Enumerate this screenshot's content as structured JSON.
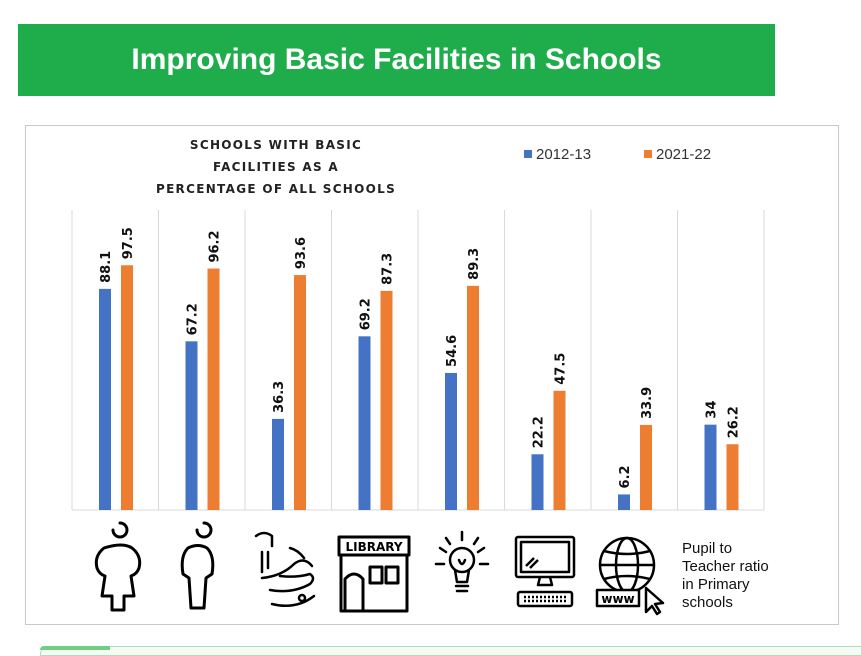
{
  "banner": {
    "title": "Improving Basic Facilities in Schools"
  },
  "colors": {
    "banner": "#1fad4b",
    "series_2012": "#4472c4",
    "series_2021": "#ed7d31"
  },
  "chart_data": {
    "type": "bar",
    "title": "SCHOOLS WITH BASIC FACILITIES AS A PERCENTAGE OF ALL SCHOOLS",
    "title_lines": [
      "SCHOOLS WITH BASIC FACILITIES AS A",
      "PERCENTAGE OF ALL SCHOOLS"
    ],
    "categories": [
      "girls-toilet",
      "boys-toilet",
      "handwash",
      "library",
      "electricity",
      "computer",
      "internet",
      "pupil-teacher-ratio"
    ],
    "series": [
      {
        "name": "2012-13",
        "values": [
          88.1,
          67.2,
          36.3,
          69.2,
          54.6,
          22.2,
          6.2,
          34
        ]
      },
      {
        "name": "2021-22",
        "values": [
          97.5,
          96.2,
          93.6,
          87.3,
          89.3,
          47.5,
          33.9,
          26.2
        ]
      }
    ],
    "value_labels": [
      [
        "88.1",
        "67.2",
        "36.3",
        "69.2",
        "54.6",
        "22.2",
        "6.2",
        "34"
      ],
      [
        "97.5",
        "96.2",
        "93.6",
        "87.3",
        "89.3",
        "47.5",
        "33.9",
        "26.2"
      ]
    ],
    "ylim": [
      0,
      105
    ],
    "legend": "top-right",
    "grid": "vertical",
    "icon_labels": {
      "library": "LIBRARY",
      "internet": "www"
    },
    "ratio_caption": [
      "Pupil to",
      "Teacher ratio",
      "in Primary",
      "schools"
    ]
  }
}
